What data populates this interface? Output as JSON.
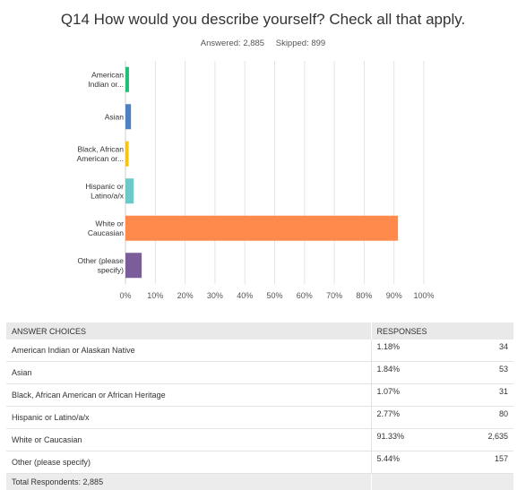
{
  "question": {
    "title": "Q14 How would you describe yourself? Check all that apply.",
    "answered": "Answered: 2,885",
    "skipped": "Skipped: 899"
  },
  "chart_data": {
    "type": "bar",
    "orientation": "horizontal",
    "categories": [
      [
        "American",
        "Indian or..."
      ],
      [
        "Asian"
      ],
      [
        "Black, African",
        "American or..."
      ],
      [
        "Hispanic or",
        "Latino/a/x"
      ],
      [
        "White or",
        "Caucasian"
      ],
      [
        "Other (please",
        "specify)"
      ]
    ],
    "values": [
      1.18,
      1.84,
      1.07,
      2.77,
      91.33,
      5.44
    ],
    "colors": [
      "#1fbf78",
      "#4f7fc3",
      "#f5c516",
      "#6cc9c8",
      "#ff8a4c",
      "#7a5d99"
    ],
    "xlim": [
      0,
      100
    ],
    "xticks": [
      "0%",
      "10%",
      "20%",
      "30%",
      "40%",
      "50%",
      "60%",
      "70%",
      "80%",
      "90%",
      "100%"
    ],
    "grid": true
  },
  "table": {
    "headers": [
      "ANSWER CHOICES",
      "RESPONSES"
    ],
    "rows": [
      {
        "choice": "American Indian or Alaskan Native",
        "percent": "1.18%",
        "count": "34"
      },
      {
        "choice": "Asian",
        "percent": "1.84%",
        "count": "53"
      },
      {
        "choice": "Black, African American or African Heritage",
        "percent": "1.07%",
        "count": "31"
      },
      {
        "choice": "Hispanic or Latino/a/x",
        "percent": "2.77%",
        "count": "80"
      },
      {
        "choice": "White or Caucasian",
        "percent": "91.33%",
        "count": "2,635"
      },
      {
        "choice": "Other (please specify)",
        "percent": "5.44%",
        "count": "157"
      }
    ],
    "total": "Total Respondents: 2,885"
  }
}
